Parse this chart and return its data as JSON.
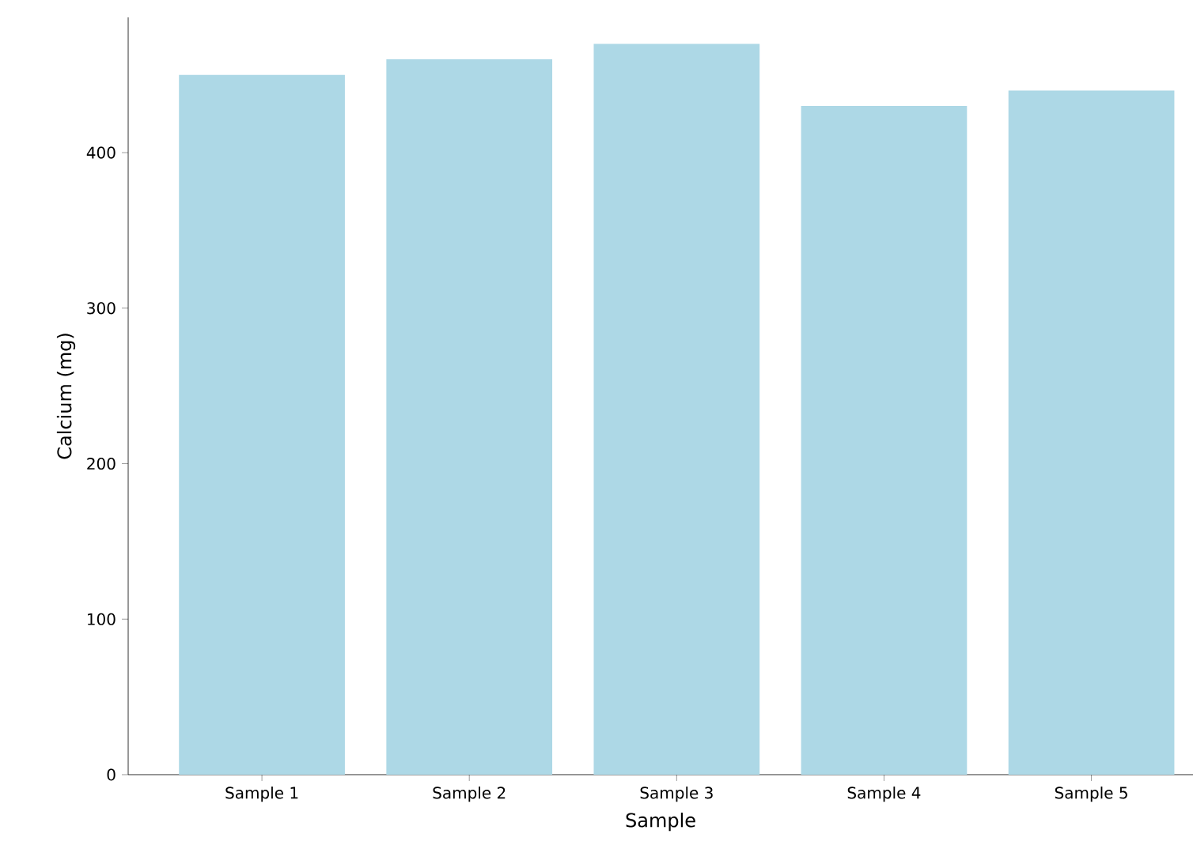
{
  "chart_data": {
    "type": "bar",
    "xlabel": "Sample",
    "ylabel": "Calcium (mg)",
    "categories": [
      "Sample 1",
      "Sample 2",
      "Sample 3",
      "Sample 4",
      "Sample 5"
    ],
    "values": [
      450,
      460,
      470,
      430,
      440
    ],
    "color": "#add8e6",
    "ylim": [
      0,
      487
    ],
    "yticks": [
      0,
      100,
      200,
      300,
      400
    ],
    "grid": false
  }
}
